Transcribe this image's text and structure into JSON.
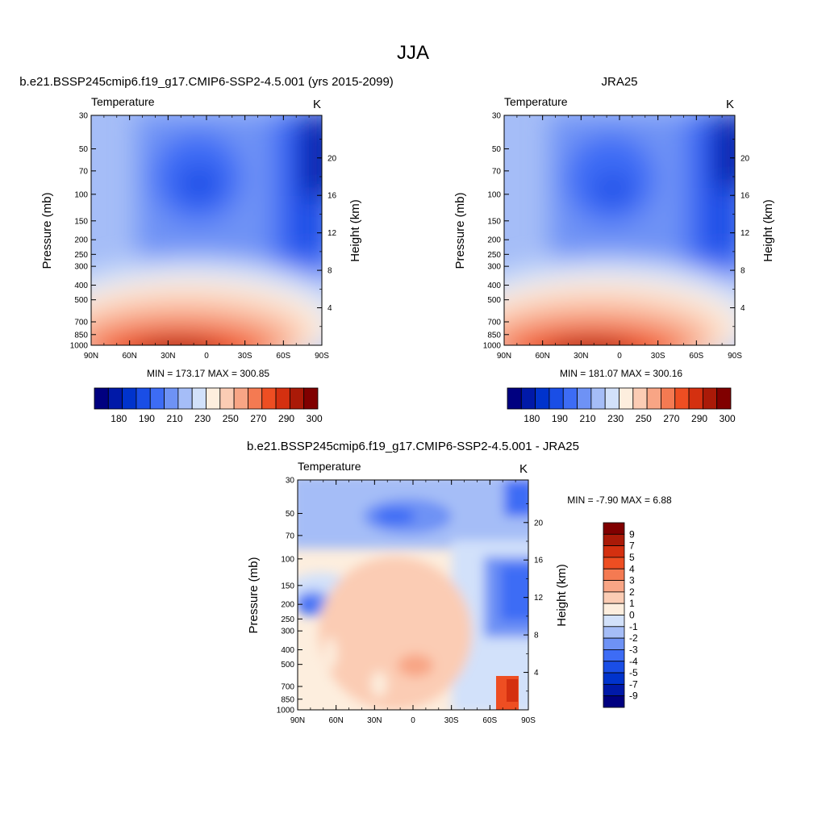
{
  "figure": {
    "main_title": "JJA"
  },
  "chart_data": [
    {
      "type": "heatmap",
      "id": "model",
      "title": "b.e21.BSSP245cmip6.f19_g17.CMIP6-SSP2-4.5.001 (yrs 2015-2099)",
      "variable": "Temperature",
      "units": "K",
      "xlabel": "",
      "ylabel": "Pressure (mb)",
      "y2label": "Height (km)",
      "x_ticks": [
        "90N",
        "60N",
        "30N",
        "0",
        "30S",
        "60S",
        "90S"
      ],
      "y_ticks": [
        "30",
        "50",
        "70",
        "100",
        "150",
        "200",
        "250",
        "300",
        "400",
        "500",
        "700",
        "850",
        "1000"
      ],
      "y2_ticks": [
        "20",
        "16",
        "12",
        "8",
        "4"
      ],
      "minmax_text": "MIN = 173.17  MAX = 300.85",
      "min": 173.17,
      "max": 300.85,
      "colorbar": {
        "orientation": "horizontal",
        "labels": [
          "180",
          "190",
          "210",
          "230",
          "250",
          "270",
          "290",
          "300"
        ],
        "colors": [
          "#000080",
          "#0019a8",
          "#0033cc",
          "#1a4ee6",
          "#3d6cf5",
          "#6e92f5",
          "#a5bdf7",
          "#d2e1fa",
          "#fdeede",
          "#fbccb4",
          "#f8a585",
          "#f47a52",
          "#ee4e22",
          "#d43010",
          "#aa1a08",
          "#800000"
        ]
      }
    },
    {
      "type": "heatmap",
      "id": "obs",
      "title": "JRA25",
      "variable": "Temperature",
      "units": "K",
      "xlabel": "",
      "ylabel": "Pressure (mb)",
      "y2label": "Height (km)",
      "x_ticks": [
        "90N",
        "60N",
        "30N",
        "0",
        "30S",
        "60S",
        "90S"
      ],
      "y_ticks": [
        "30",
        "50",
        "70",
        "100",
        "150",
        "200",
        "250",
        "300",
        "400",
        "500",
        "700",
        "850",
        "1000"
      ],
      "y2_ticks": [
        "20",
        "16",
        "12",
        "8",
        "4"
      ],
      "minmax_text": "MIN = 181.07  MAX = 300.16",
      "min": 181.07,
      "max": 300.16,
      "colorbar": {
        "orientation": "horizontal",
        "labels": [
          "180",
          "190",
          "210",
          "230",
          "250",
          "270",
          "290",
          "300"
        ],
        "colors": [
          "#000080",
          "#0019a8",
          "#0033cc",
          "#1a4ee6",
          "#3d6cf5",
          "#6e92f5",
          "#a5bdf7",
          "#d2e1fa",
          "#fdeede",
          "#fbccb4",
          "#f8a585",
          "#f47a52",
          "#ee4e22",
          "#d43010",
          "#aa1a08",
          "#800000"
        ]
      }
    },
    {
      "type": "heatmap",
      "id": "diff",
      "title": "b.e21.BSSP245cmip6.f19_g17.CMIP6-SSP2-4.5.001 - JRA25",
      "variable": "Temperature",
      "units": "K",
      "xlabel": "",
      "ylabel": "Pressure (mb)",
      "y2label": "Height (km)",
      "x_ticks": [
        "90N",
        "60N",
        "30N",
        "0",
        "30S",
        "60S",
        "90S"
      ],
      "y_ticks": [
        "30",
        "50",
        "70",
        "100",
        "150",
        "200",
        "250",
        "300",
        "400",
        "500",
        "700",
        "850",
        "1000"
      ],
      "y2_ticks": [
        "20",
        "16",
        "12",
        "8",
        "4"
      ],
      "minmax_text": "MIN =  -7.90  MAX =   6.88",
      "min": -7.9,
      "max": 6.88,
      "colorbar": {
        "orientation": "vertical",
        "labels": [
          "9",
          "7",
          "5",
          "4",
          "3",
          "2",
          "1",
          "0",
          "-1",
          "-2",
          "-3",
          "-4",
          "-5",
          "-7",
          "-9"
        ],
        "colors": [
          "#800000",
          "#aa1a08",
          "#d43010",
          "#ee4e22",
          "#f47a52",
          "#f8a585",
          "#fbccb4",
          "#fdeede",
          "#d2e1fa",
          "#a5bdf7",
          "#6e92f5",
          "#3d6cf5",
          "#1a4ee6",
          "#0033cc",
          "#0019a8",
          "#000080"
        ]
      }
    }
  ]
}
